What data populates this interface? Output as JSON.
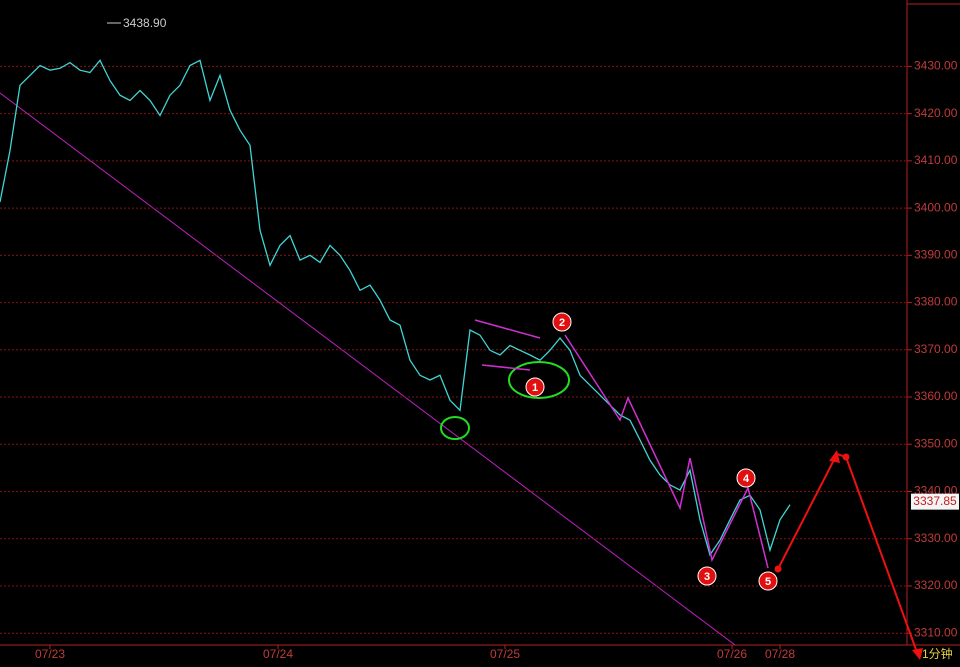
{
  "chart_data": {
    "type": "line",
    "legend_label": "3438.90",
    "series": [
      {
        "name": "3438.90",
        "color": "#3fd6d6",
        "x": [
          0,
          1,
          2,
          3,
          4,
          5,
          6,
          7,
          8,
          9,
          10,
          11,
          12,
          13,
          14,
          15,
          16,
          17,
          18,
          19,
          20,
          21,
          22,
          23,
          24,
          25,
          26,
          27,
          28,
          29,
          30,
          31,
          32,
          33,
          34,
          35,
          36,
          37,
          38,
          39,
          40,
          41,
          42,
          43,
          44,
          45,
          46,
          47,
          48,
          49,
          50,
          51,
          52,
          53,
          54,
          55,
          56,
          57,
          58,
          59,
          60,
          61,
          62,
          63,
          64,
          65,
          66,
          67,
          68,
          69,
          70,
          71,
          72,
          73,
          74,
          75,
          76,
          77,
          78,
          79
        ],
        "values": [
          3401.3,
          3412.2,
          3426,
          3428.1,
          3430.2,
          3429.2,
          3429.6,
          3430.8,
          3429.2,
          3428.7,
          3431.3,
          3427,
          3423.9,
          3422.8,
          3424.9,
          3422.8,
          3419.6,
          3423.9,
          3426,
          3430.2,
          3431.3,
          3422.8,
          3428.1,
          3420.7,
          3416.5,
          3413.3,
          3395.3,
          3387.9,
          3392.1,
          3394.2,
          3389,
          3390,
          3388.5,
          3392.1,
          3390,
          3386.8,
          3382.6,
          3383.7,
          3380.5,
          3376.3,
          3375.2,
          3367.8,
          3364.6,
          3363.6,
          3364.6,
          3359.3,
          3357.2,
          3374.2,
          3373.1,
          3369.9,
          3368.9,
          3370.9,
          3369.9,
          3368.9,
          3367.8,
          3369.9,
          3372.5,
          3369.9,
          3364.6,
          3362.5,
          3360.4,
          3358.3,
          3356.2,
          3355.1,
          3350.9,
          3346.6,
          3343.5,
          3341.4,
          3340.3,
          3344.5,
          3334,
          3326.6,
          3329.7,
          3334,
          3338.2,
          3339.2,
          3336.1,
          3327.6,
          3334,
          3337.2
        ]
      }
    ],
    "xlim": [
      0,
      91
    ],
    "xticks": [
      {
        "value": 5,
        "label": "07/23"
      },
      {
        "value": 27.8,
        "label": "07/24"
      },
      {
        "value": 50.5,
        "label": "07/25"
      },
      {
        "value": 73.2,
        "label": "07/26"
      },
      {
        "value": 78,
        "label": "07/28"
      }
    ],
    "ylim": [
      3307.5,
      3443
    ],
    "yticks": [
      {
        "value": 3310,
        "label": "3310.00"
      },
      {
        "value": 3320,
        "label": "3320.00"
      },
      {
        "value": 3330,
        "label": "3330.00"
      },
      {
        "value": 3340,
        "label": "3340.00"
      },
      {
        "value": 3350,
        "label": "3350.00"
      },
      {
        "value": 3360,
        "label": "3360.00"
      },
      {
        "value": 3370,
        "label": "3370.00"
      },
      {
        "value": 3380,
        "label": "3380.00"
      },
      {
        "value": 3390,
        "label": "3390.00"
      },
      {
        "value": 3400,
        "label": "3400.00"
      },
      {
        "value": 3410,
        "label": "3410.00"
      },
      {
        "value": 3420,
        "label": "3420.00"
      },
      {
        "value": 3430,
        "label": "3430.00"
      }
    ],
    "grid": true,
    "current_price": 3337.85,
    "current_price_label": "3337.85",
    "period": "1分钟",
    "annotations": [
      "1",
      "2",
      "3",
      "4",
      "5"
    ]
  }
}
